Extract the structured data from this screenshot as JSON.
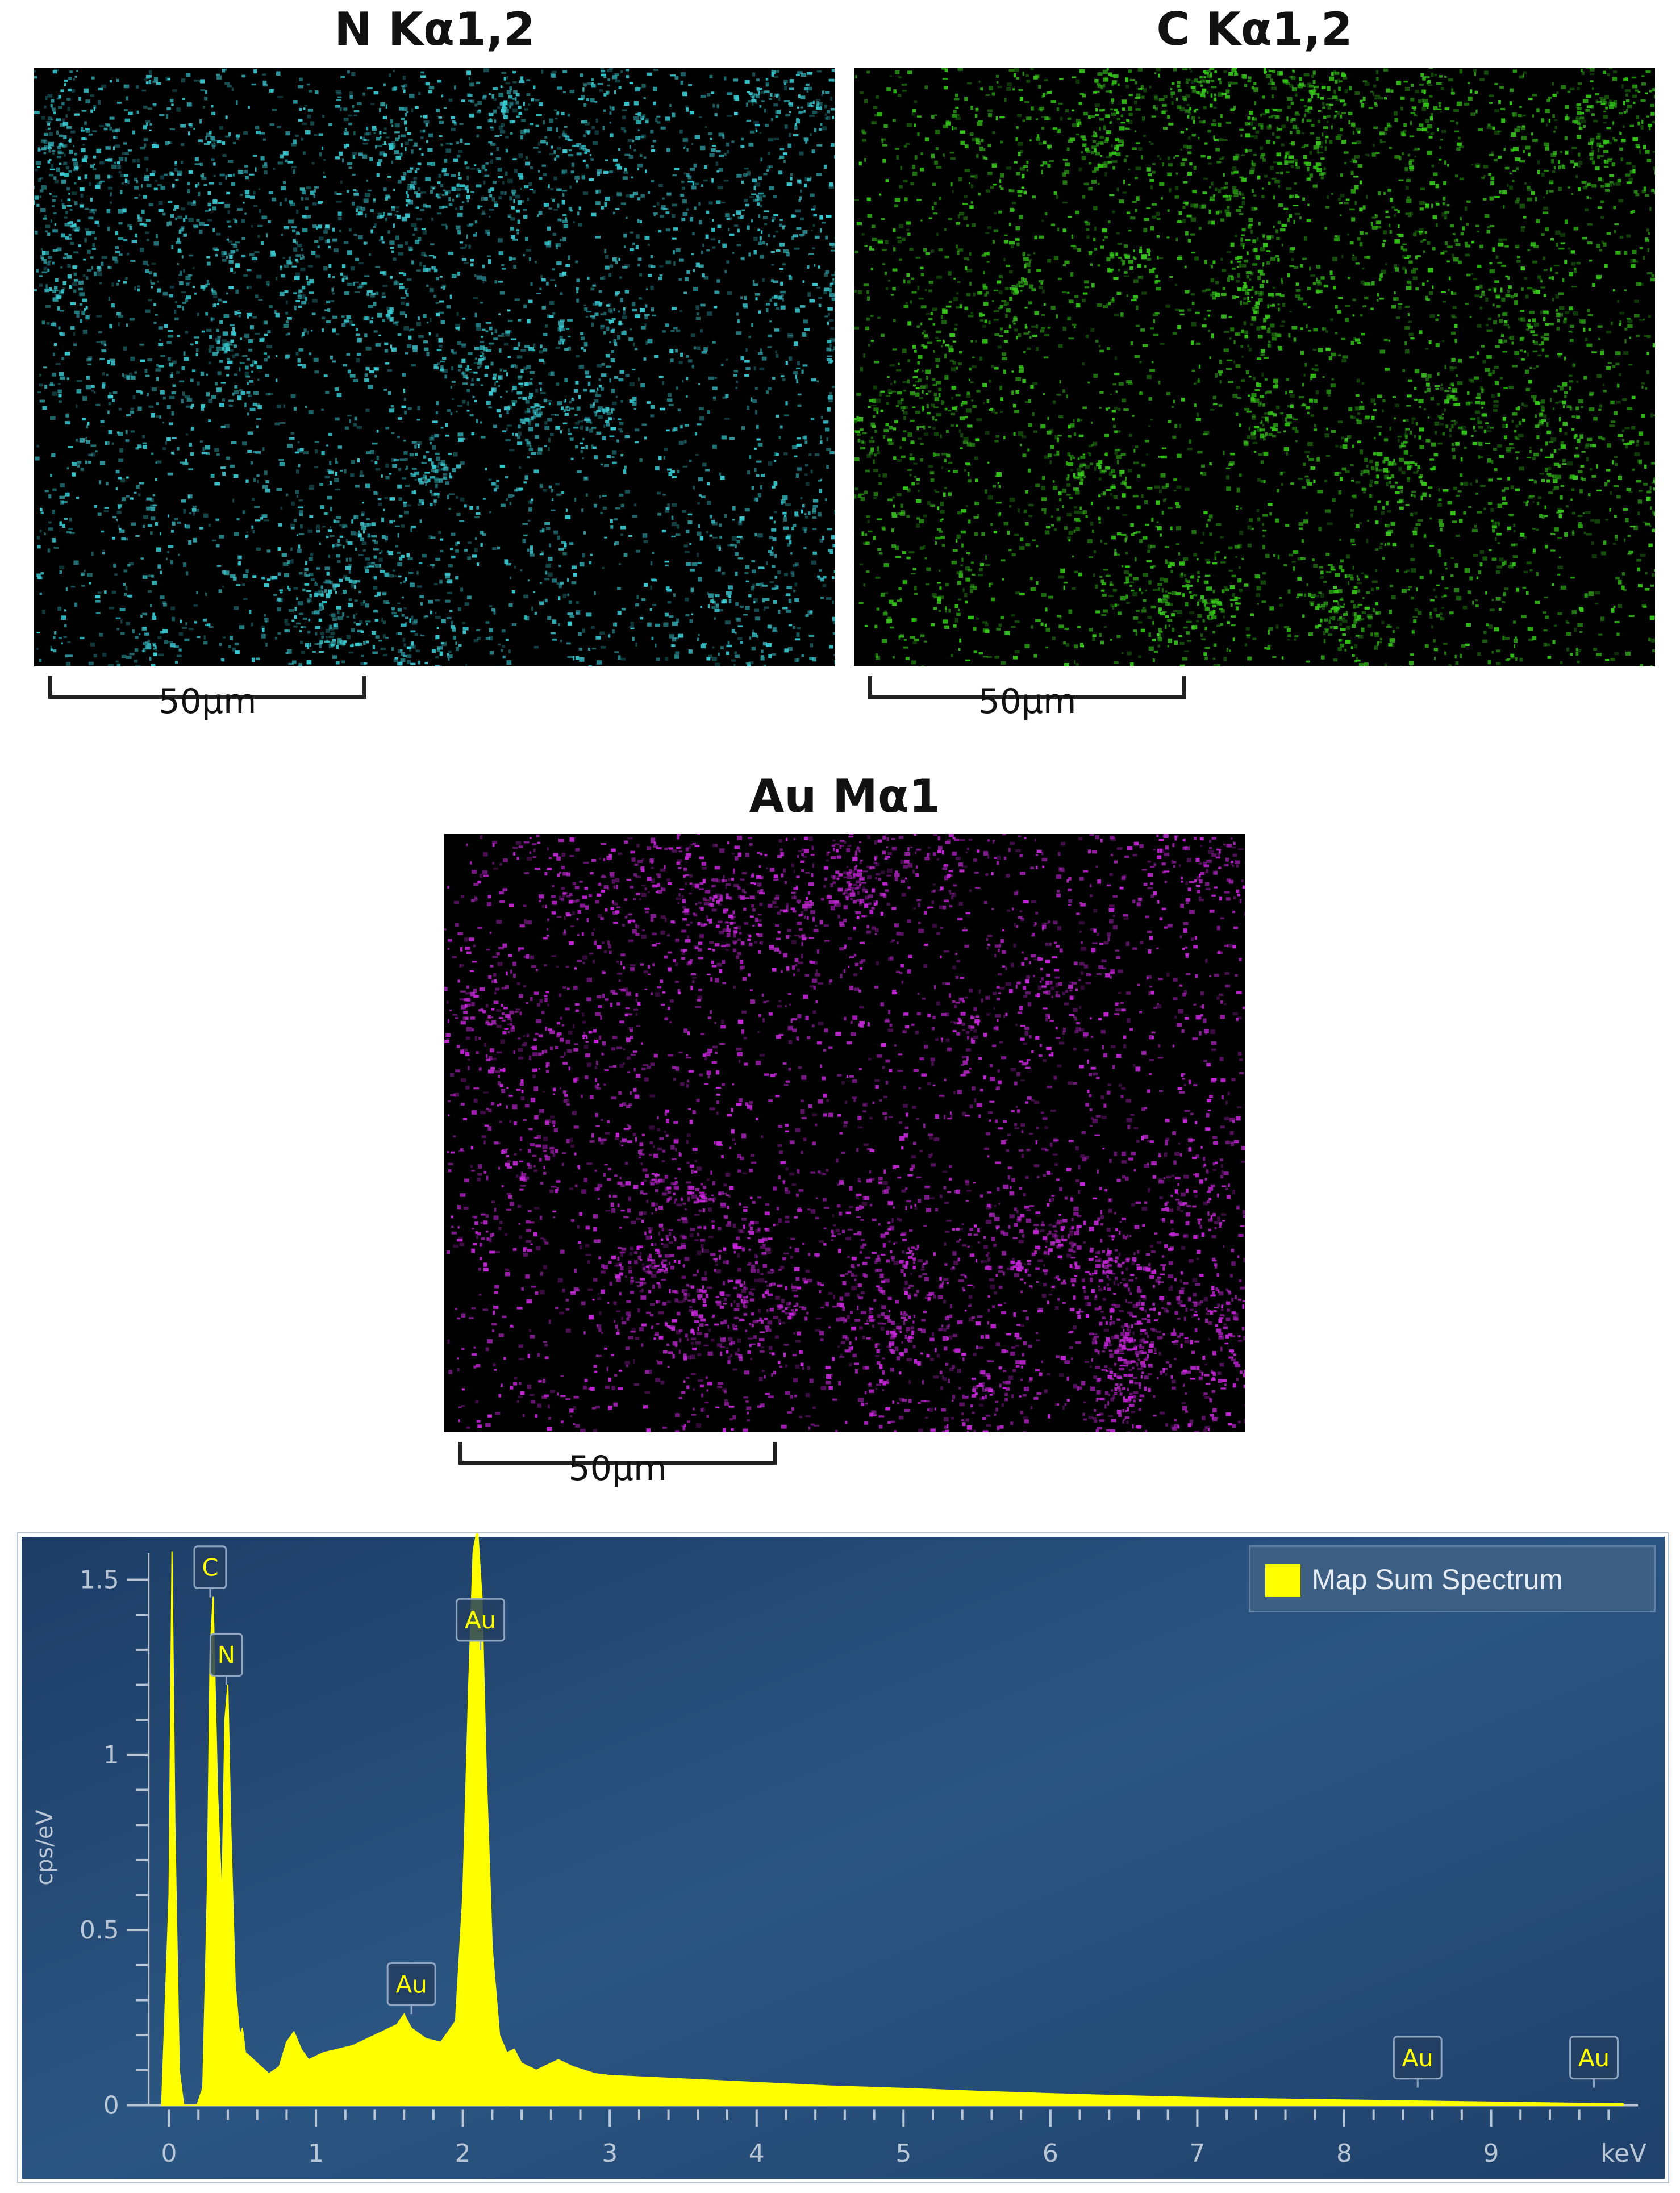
{
  "maps": [
    {
      "title": "N Kα1,2",
      "color": "#39c7cf",
      "scalebar": "50µm"
    },
    {
      "title": "C Kα1,2",
      "color": "#35c51a",
      "scalebar": "50µm"
    },
    {
      "title": "Au Mα1",
      "color": "#c326d6",
      "scalebar": "50µm"
    }
  ],
  "chart_data": {
    "type": "area",
    "title": "",
    "xlabel": "keV",
    "ylabel": "cps/eV",
    "xlim": [
      -0.1,
      10.0
    ],
    "ylim": [
      0,
      1.6
    ],
    "xticks": [
      0,
      1,
      2,
      3,
      4,
      5,
      6,
      7,
      8,
      9
    ],
    "yticks": [
      0,
      0.5,
      1,
      1.5
    ],
    "ytick_labels": [
      "0",
      "0.5",
      "1",
      "1.5"
    ],
    "grid": false,
    "legend_position": "top-right",
    "series": [
      {
        "name": "Map Sum Spectrum",
        "color": "#ffff00",
        "x": [
          -0.05,
          0.0,
          0.02,
          0.04,
          0.07,
          0.1,
          0.15,
          0.19,
          0.23,
          0.26,
          0.28,
          0.3,
          0.33,
          0.36,
          0.38,
          0.4,
          0.42,
          0.45,
          0.48,
          0.5,
          0.52,
          0.55,
          0.6,
          0.68,
          0.75,
          0.8,
          0.85,
          0.9,
          0.95,
          1.05,
          1.15,
          1.25,
          1.35,
          1.45,
          1.55,
          1.6,
          1.65,
          1.75,
          1.85,
          1.95,
          2.0,
          2.04,
          2.07,
          2.1,
          2.13,
          2.16,
          2.2,
          2.25,
          2.3,
          2.35,
          2.4,
          2.5,
          2.6,
          2.65,
          2.75,
          2.9,
          3.0,
          3.5,
          4.0,
          4.5,
          5.0,
          5.5,
          6.0,
          6.5,
          7.0,
          7.5,
          8.0,
          8.5,
          9.0,
          9.5,
          9.9
        ],
        "y": [
          0.0,
          0.6,
          1.58,
          0.8,
          0.1,
          0.0,
          0.0,
          0.0,
          0.05,
          0.6,
          1.3,
          1.45,
          0.9,
          0.58,
          1.1,
          1.2,
          0.8,
          0.35,
          0.2,
          0.22,
          0.15,
          0.14,
          0.12,
          0.09,
          0.11,
          0.18,
          0.21,
          0.16,
          0.13,
          0.15,
          0.16,
          0.17,
          0.19,
          0.21,
          0.23,
          0.26,
          0.22,
          0.19,
          0.18,
          0.24,
          0.6,
          1.2,
          1.58,
          1.65,
          1.45,
          0.95,
          0.45,
          0.2,
          0.15,
          0.16,
          0.12,
          0.1,
          0.12,
          0.13,
          0.11,
          0.09,
          0.085,
          0.075,
          0.065,
          0.055,
          0.048,
          0.04,
          0.033,
          0.027,
          0.022,
          0.018,
          0.015,
          0.012,
          0.009,
          0.006,
          0.004
        ]
      }
    ],
    "annotations": [
      {
        "label": "C",
        "x": 0.28,
        "y": 1.45
      },
      {
        "label": "N",
        "x": 0.39,
        "y": 1.2
      },
      {
        "label": "Au",
        "x": 2.12,
        "y": 1.3
      },
      {
        "label": "Au",
        "x": 1.65,
        "y": 0.26
      },
      {
        "label": "Au",
        "x": 8.5,
        "y": 0.05
      },
      {
        "label": "Au",
        "x": 9.7,
        "y": 0.05
      }
    ]
  }
}
